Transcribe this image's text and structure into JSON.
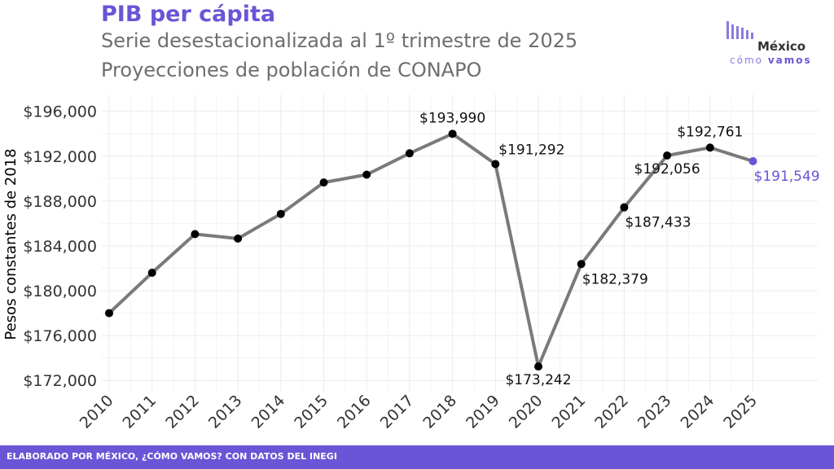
{
  "header": {
    "title": "PIB per cápita",
    "subtitle_1": "Serie desestacionalizada al 1º trimestre de 2025",
    "subtitle_2": "Proyecciones de población de CONAPO"
  },
  "logo": {
    "line1": "México",
    "line2a": "cómo",
    "line2b": "vamos"
  },
  "footer": {
    "text": "ELABORADO POR MÉXICO, ¿CÓMO VAMOS? CON DATOS DEL INEGI"
  },
  "colors": {
    "accent": "#6a55d6",
    "line": "#7a7a7a",
    "point": "#000000",
    "grid": "#ebebeb"
  },
  "chart_data": {
    "type": "line",
    "ylabel": "Pesos constantes de 2018",
    "xlabel": "",
    "ylim": [
      171000,
      197500
    ],
    "yticks": [
      172000,
      176000,
      180000,
      184000,
      188000,
      192000,
      196000
    ],
    "ytick_labels": [
      "$172,000",
      "$176,000",
      "$180,000",
      "$184,000",
      "$188,000",
      "$192,000",
      "$196,000"
    ],
    "x": [
      "2010",
      "2011",
      "2012",
      "2013",
      "2014",
      "2015",
      "2016",
      "2017",
      "2018",
      "2019",
      "2020",
      "2021",
      "2022",
      "2023",
      "2024",
      "2025"
    ],
    "values": [
      178000,
      181600,
      185050,
      184650,
      186850,
      189650,
      190350,
      192250,
      193990,
      191292,
      173242,
      182379,
      187433,
      192056,
      192761,
      191549
    ],
    "grid": true,
    "highlight_last": true,
    "labels": [
      {
        "index": 8,
        "text": "$193,990",
        "pos": "above"
      },
      {
        "index": 9,
        "text": "$191,292",
        "pos": "above-right"
      },
      {
        "index": 10,
        "text": "$173,242",
        "pos": "below"
      },
      {
        "index": 11,
        "text": "$182,379",
        "pos": "below-right"
      },
      {
        "index": 12,
        "text": "$187,433",
        "pos": "below-right"
      },
      {
        "index": 13,
        "text": "$192,056",
        "pos": "below"
      },
      {
        "index": 14,
        "text": "$192,761",
        "pos": "above"
      },
      {
        "index": 15,
        "text": "$191,549",
        "pos": "below-right"
      }
    ]
  }
}
